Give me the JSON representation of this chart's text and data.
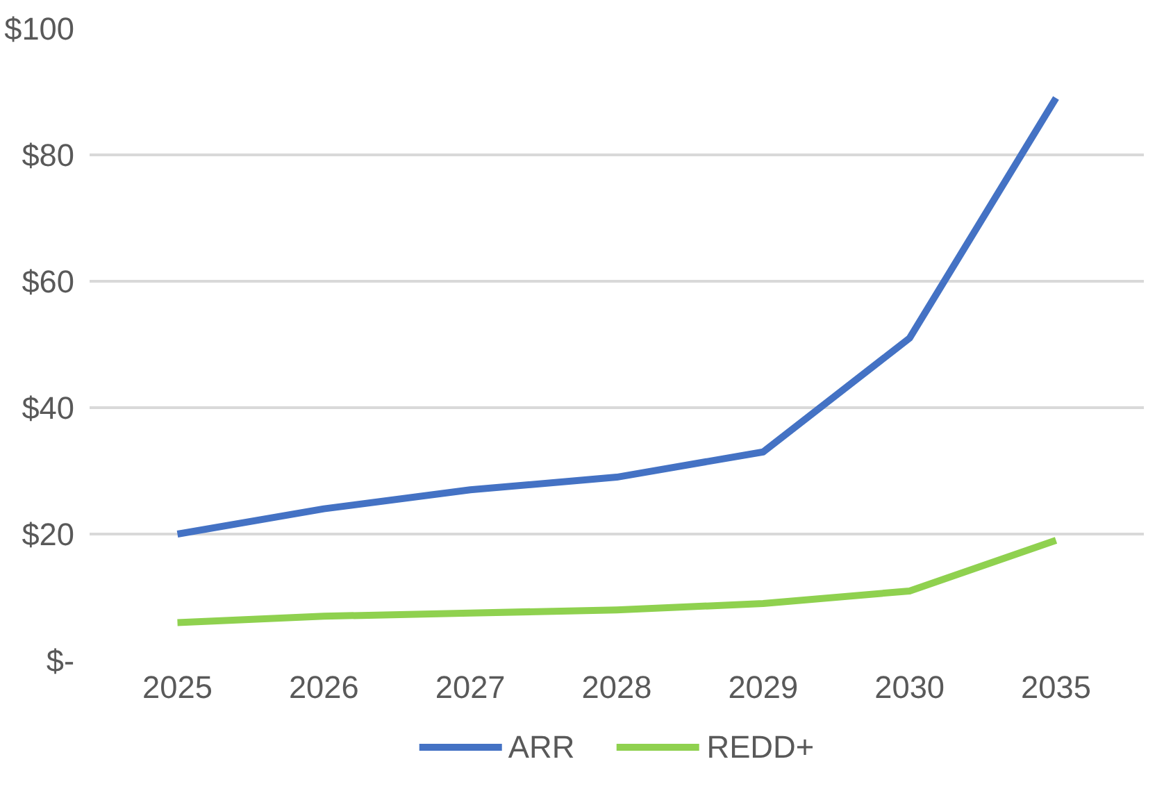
{
  "chart_data": {
    "type": "line",
    "categories": [
      "2025",
      "2026",
      "2027",
      "2028",
      "2029",
      "2030",
      "2035"
    ],
    "series": [
      {
        "name": "ARR",
        "color": "#4472c4",
        "values": [
          20,
          24,
          27,
          29,
          33,
          51,
          89
        ]
      },
      {
        "name": "REDD+",
        "color": "#8fd14f",
        "values": [
          6,
          7,
          7.5,
          8,
          9,
          11,
          19
        ]
      }
    ],
    "ylim": [
      0,
      100
    ],
    "yticks": [
      {
        "value": 0,
        "label": "$-"
      },
      {
        "value": 20,
        "label": "$20"
      },
      {
        "value": 40,
        "label": "$40"
      },
      {
        "value": 60,
        "label": "$60"
      },
      {
        "value": 80,
        "label": "$80"
      },
      {
        "value": 100,
        "label": "$100"
      }
    ],
    "grid": "y",
    "legend": "bottom",
    "marker": "none",
    "line_style": "solid"
  }
}
